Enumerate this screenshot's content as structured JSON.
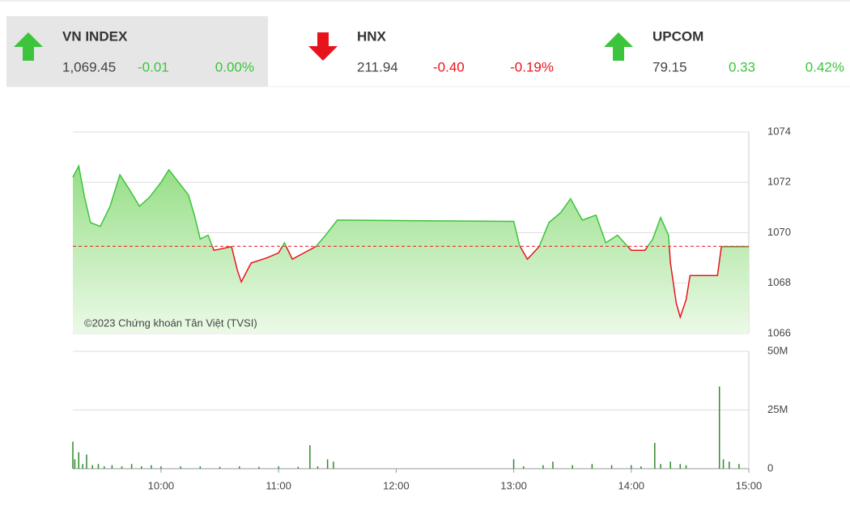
{
  "header": {
    "tiles": [
      {
        "name": "VN INDEX",
        "value": "1,069.45",
        "change": "-0.01",
        "percent": "0.00%",
        "direction": "up"
      },
      {
        "name": "HNX",
        "value": "211.94",
        "change": "-0.40",
        "percent": "-0.19%",
        "direction": "down"
      },
      {
        "name": "UPCOM",
        "value": "79.15",
        "change": "0.33",
        "percent": "0.42%",
        "direction": "up"
      }
    ]
  },
  "chart_data": [
    {
      "type": "line",
      "watermark": "©2023 Chứng khoán Tân Việt (TVSI)",
      "x": [
        "09:15",
        "09:18",
        "09:21",
        "09:24",
        "09:29",
        "09:34",
        "09:39",
        "09:44",
        "09:49",
        "09:54",
        "10:00",
        "10:04",
        "10:09",
        "10:14",
        "10:17",
        "10:20",
        "10:24",
        "10:27",
        "10:36",
        "10:39",
        "10:41",
        "10:46",
        "10:54",
        "11:00",
        "11:03",
        "11:07",
        "11:13",
        "11:19",
        "11:24",
        "11:30",
        "13:00",
        "13:03",
        "13:07",
        "13:13",
        "13:18",
        "13:24",
        "13:29",
        "13:35",
        "13:42",
        "13:47",
        "13:53",
        "14:00",
        "14:07",
        "14:11",
        "14:15",
        "14:19",
        "14:20",
        "14:23",
        "14:25",
        "14:28",
        "14:30",
        "14:44",
        "14:46",
        "15:00"
      ],
      "values": [
        1072.2,
        1072.65,
        1071.4,
        1070.4,
        1070.25,
        1071.05,
        1072.3,
        1071.7,
        1071.05,
        1071.4,
        1072.0,
        1072.5,
        1072.0,
        1071.5,
        1070.7,
        1069.75,
        1069.9,
        1069.3,
        1069.45,
        1068.5,
        1068.05,
        1068.8,
        1069.0,
        1069.2,
        1069.6,
        1068.95,
        1069.2,
        1069.45,
        1069.9,
        1070.5,
        1070.45,
        1069.5,
        1068.95,
        1069.45,
        1070.4,
        1070.8,
        1071.35,
        1070.5,
        1070.7,
        1069.6,
        1069.9,
        1069.3,
        1069.3,
        1069.75,
        1070.6,
        1069.9,
        1068.8,
        1067.2,
        1066.65,
        1067.35,
        1068.3,
        1068.3,
        1069.45,
        1069.45
      ],
      "reference": 1069.46,
      "up_color": "#3cc43c",
      "down_color": "#e8141c",
      "xlim": [
        "09:15",
        "15:00"
      ],
      "ylim": [
        1066,
        1074
      ],
      "yticks": [
        1066,
        1068,
        1070,
        1072,
        1074
      ]
    },
    {
      "type": "bar",
      "color": "#2e8b2e",
      "x": [
        "09:15",
        "09:16",
        "09:18",
        "09:20",
        "09:22",
        "09:25",
        "09:28",
        "09:31",
        "09:35",
        "09:40",
        "09:45",
        "09:50",
        "09:55",
        "10:00",
        "10:10",
        "10:20",
        "10:30",
        "10:40",
        "10:50",
        "11:00",
        "11:10",
        "11:16",
        "11:20",
        "11:25",
        "11:28",
        "13:00",
        "13:05",
        "13:15",
        "13:20",
        "13:30",
        "13:40",
        "13:50",
        "14:00",
        "14:05",
        "14:12",
        "14:15",
        "14:20",
        "14:25",
        "14:28",
        "14:45",
        "14:47",
        "14:50",
        "14:55"
      ],
      "values": [
        11500000,
        4000000,
        7000000,
        2000000,
        6000000,
        1500000,
        2000000,
        1000000,
        1500000,
        1000000,
        2000000,
        1000000,
        1500000,
        1000000,
        1000000,
        1000000,
        800000,
        1000000,
        800000,
        1000000,
        800000,
        10000000,
        1000000,
        4000000,
        3000000,
        4000000,
        1000000,
        1500000,
        3000000,
        1500000,
        2000000,
        1500000,
        1500000,
        1000000,
        11000000,
        2000000,
        3000000,
        2000000,
        1500000,
        35000000,
        4000000,
        3000000,
        2000000
      ],
      "xlim": [
        "09:15",
        "15:00"
      ],
      "ylim": [
        0,
        50000000
      ],
      "yticks": [
        0,
        {
          "value": 25000000,
          "label": "25M"
        },
        {
          "value": 50000000,
          "label": "50M"
        }
      ],
      "xticks": [
        "10:00",
        "11:00",
        "12:00",
        "13:00",
        "14:00",
        "15:00"
      ]
    }
  ]
}
